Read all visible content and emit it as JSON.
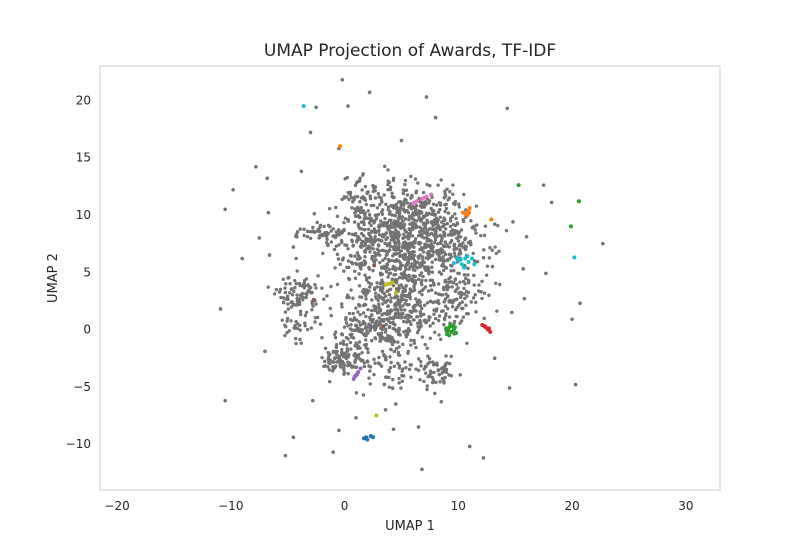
{
  "chart_data": {
    "type": "scatter",
    "title": "UMAP Projection of Awards, TF-IDF",
    "xlabel": "UMAP 1",
    "ylabel": "UMAP 2",
    "xlim": [
      -21.5,
      33.0
    ],
    "ylim": [
      -14.0,
      23.0
    ],
    "xticks": [
      -20,
      -10,
      0,
      10,
      20,
      30
    ],
    "yticks": [
      -10,
      -5,
      0,
      5,
      10,
      15,
      20
    ],
    "grid": false,
    "legend": "none",
    "base_color": "#737373",
    "noise_clusters": [
      {
        "cx": 5.5,
        "cy": 6.5,
        "sx": 3.0,
        "sy": 2.2,
        "n": 650
      },
      {
        "cx": 6.0,
        "cy": 10.0,
        "sx": 2.2,
        "sy": 1.5,
        "n": 260
      },
      {
        "cx": 2.0,
        "cy": 8.5,
        "sx": 1.6,
        "sy": 1.3,
        "n": 110
      },
      {
        "cx": -2.2,
        "cy": 8.3,
        "sx": 1.3,
        "sy": 0.5,
        "n": 45
      },
      {
        "cx": -4.0,
        "cy": 3.0,
        "sx": 0.9,
        "sy": 0.8,
        "n": 90
      },
      {
        "cx": 2.5,
        "cy": 0.0,
        "sx": 2.0,
        "sy": 1.6,
        "n": 220
      },
      {
        "cx": 5.5,
        "cy": 1.5,
        "sx": 2.2,
        "sy": 1.3,
        "n": 200
      },
      {
        "cx": -0.2,
        "cy": -2.5,
        "sx": 0.9,
        "sy": 0.7,
        "n": 90
      },
      {
        "cx": 8.2,
        "cy": -3.8,
        "sx": 0.8,
        "sy": 0.6,
        "n": 60
      },
      {
        "cx": 10.0,
        "cy": 3.0,
        "sx": 1.3,
        "sy": 1.3,
        "n": 70
      },
      {
        "cx": 4.0,
        "cy": -3.5,
        "sx": 1.7,
        "sy": 1.1,
        "n": 60
      },
      {
        "cx": 9.5,
        "cy": 8.0,
        "sx": 1.5,
        "sy": 1.0,
        "n": 70
      },
      {
        "cx": -4.5,
        "cy": 0.2,
        "sx": 0.6,
        "sy": 0.7,
        "n": 25
      },
      {
        "cx": 1.0,
        "cy": 12.0,
        "sx": 1.0,
        "sy": 1.0,
        "n": 40
      }
    ],
    "outliers": [
      [
        -0.2,
        21.8
      ],
      [
        2.2,
        20.7
      ],
      [
        0.3,
        19.5
      ],
      [
        7.2,
        20.3
      ],
      [
        -2.5,
        19.4
      ],
      [
        14.3,
        19.3
      ],
      [
        8.0,
        18.5
      ],
      [
        -3.0,
        17.2
      ],
      [
        -0.5,
        15.8
      ],
      [
        5.0,
        16.5
      ],
      [
        -7.8,
        14.2
      ],
      [
        -3.8,
        13.8
      ],
      [
        -6.8,
        13.2
      ],
      [
        -9.8,
        12.2
      ],
      [
        -10.5,
        10.5
      ],
      [
        -6.7,
        10.2
      ],
      [
        -7.5,
        8.0
      ],
      [
        -9.0,
        6.2
      ],
      [
        -6.6,
        6.5
      ],
      [
        -4.5,
        7.2
      ],
      [
        13.2,
        9.2
      ],
      [
        17.5,
        12.6
      ],
      [
        18.2,
        11.1
      ],
      [
        14.8,
        9.4
      ],
      [
        16.0,
        8.1
      ],
      [
        22.7,
        7.5
      ],
      [
        15.7,
        5.3
      ],
      [
        13.0,
        5.5
      ],
      [
        17.7,
        4.9
      ],
      [
        20.7,
        2.3
      ],
      [
        15.8,
        2.7
      ],
      [
        12.0,
        3.3
      ],
      [
        14.7,
        1.5
      ],
      [
        -10.9,
        1.8
      ],
      [
        20.0,
        0.9
      ],
      [
        -7.0,
        -1.9
      ],
      [
        13.2,
        -2.5
      ],
      [
        20.3,
        -4.8
      ],
      [
        14.5,
        -5.1
      ],
      [
        -10.5,
        -6.2
      ],
      [
        -2.8,
        -6.2
      ],
      [
        4.5,
        -6.5
      ],
      [
        8.5,
        -6.3
      ],
      [
        1.0,
        -7.7
      ],
      [
        -0.5,
        -8.8
      ],
      [
        4.3,
        -8.7
      ],
      [
        6.5,
        -8.5
      ],
      [
        -4.5,
        -9.4
      ],
      [
        -1.0,
        -10.7
      ],
      [
        11.0,
        -10.2
      ],
      [
        -5.2,
        -11.0
      ],
      [
        6.8,
        -12.2
      ],
      [
        12.2,
        -11.2
      ],
      [
        3.6,
        -7.0
      ]
    ],
    "highlight_series": [
      {
        "color": "#17becf",
        "points": [
          [
            -3.6,
            19.5
          ],
          [
            20.2,
            6.3
          ],
          [
            10.0,
            6.0
          ],
          [
            10.3,
            5.7
          ],
          [
            10.6,
            6.2
          ],
          [
            10.9,
            5.9
          ],
          [
            11.2,
            6.2
          ],
          [
            10.5,
            5.4
          ],
          [
            9.6,
            5.8
          ],
          [
            11.4,
            5.7
          ],
          [
            10.8,
            6.4
          ],
          [
            9.9,
            6.3
          ],
          [
            10.2,
            6.1
          ]
        ]
      },
      {
        "color": "#2ca02c",
        "points": [
          [
            15.3,
            12.6
          ],
          [
            20.6,
            11.2
          ],
          [
            19.9,
            9.0
          ],
          [
            9.2,
            0.2
          ],
          [
            9.4,
            -0.2
          ],
          [
            9.0,
            -0.4
          ],
          [
            9.6,
            0.0
          ],
          [
            9.3,
            0.4
          ],
          [
            9.8,
            -0.3
          ],
          [
            8.9,
            0.1
          ],
          [
            9.5,
            0.3
          ],
          [
            9.1,
            -0.1
          ],
          [
            9.7,
            0.2
          ],
          [
            9.2,
            -0.5
          ]
        ]
      },
      {
        "color": "#ff7f0e",
        "points": [
          [
            10.6,
            10.1
          ],
          [
            10.9,
            10.3
          ],
          [
            11.0,
            10.6
          ],
          [
            10.8,
            10.0
          ],
          [
            10.4,
            10.2
          ],
          [
            12.9,
            9.6
          ],
          [
            -0.4,
            16.0
          ]
        ]
      },
      {
        "color": "#d62728",
        "points": [
          [
            12.1,
            0.4
          ],
          [
            12.4,
            0.2
          ],
          [
            12.6,
            0.0
          ],
          [
            12.8,
            -0.2
          ],
          [
            12.3,
            0.3
          ],
          [
            12.7,
            0.1
          ]
        ]
      },
      {
        "color": "#e377c2",
        "points": [
          [
            6.0,
            11.0
          ],
          [
            6.4,
            11.2
          ],
          [
            6.8,
            11.4
          ],
          [
            7.2,
            11.6
          ],
          [
            7.6,
            11.8
          ],
          [
            6.2,
            11.1
          ],
          [
            7.0,
            11.5
          ]
        ]
      },
      {
        "color": "#9467bd",
        "points": [
          [
            0.8,
            -4.3
          ],
          [
            1.0,
            -4.0
          ],
          [
            1.2,
            -3.7
          ],
          [
            1.4,
            -3.4
          ],
          [
            0.9,
            -4.1
          ],
          [
            1.1,
            -3.9
          ]
        ]
      },
      {
        "color": "#bcbd22",
        "points": [
          [
            3.8,
            4.0
          ],
          [
            4.2,
            4.1
          ],
          [
            3.6,
            3.9
          ],
          [
            4.0,
            4.0
          ],
          [
            4.5,
            3.2
          ],
          [
            2.8,
            -7.5
          ]
        ]
      },
      {
        "color": "#1f77b4",
        "points": [
          [
            1.9,
            -9.4
          ],
          [
            2.3,
            -9.3
          ],
          [
            2.0,
            -9.6
          ],
          [
            2.5,
            -9.4
          ],
          [
            1.7,
            -9.5
          ]
        ]
      },
      {
        "color": "#8c564b",
        "points": [
          [
            2.6,
            5.6
          ],
          [
            3.4,
            0.3
          ],
          [
            -2.7,
            2.6
          ]
        ]
      }
    ]
  }
}
